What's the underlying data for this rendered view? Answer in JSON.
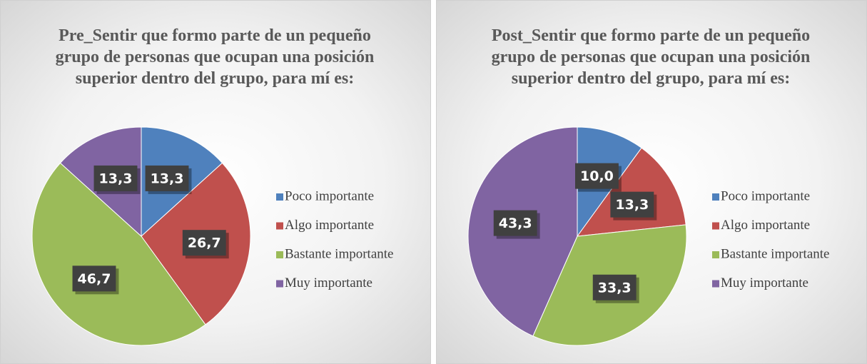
{
  "chart_data": [
    {
      "type": "pie",
      "title": "Pre_Sentir que formo parte de un pequeño grupo de personas que ocupan una posición superior dentro del grupo, para mí es:",
      "categories": [
        "Poco importante",
        "Algo importante",
        "Bastante importante",
        "Muy importante"
      ],
      "values": [
        13.3,
        26.7,
        46.7,
        13.3
      ],
      "value_labels": [
        "13,3",
        "26,7",
        "46,7",
        "13,3"
      ],
      "colors": [
        "#4f81bd",
        "#c0504d",
        "#9bbb59",
        "#8064a2"
      ]
    },
    {
      "type": "pie",
      "title": "Post_Sentir que formo parte de un pequeño grupo de personas que ocupan una posición superior dentro del grupo, para mí es:",
      "categories": [
        "Poco importante",
        "Algo importante",
        "Bastante importante",
        "Muy importante"
      ],
      "values": [
        10.0,
        13.3,
        33.3,
        43.3
      ],
      "value_labels": [
        "10,0",
        "13,3",
        "33,3",
        "43,3"
      ],
      "colors": [
        "#4f81bd",
        "#c0504d",
        "#9bbb59",
        "#8064a2"
      ]
    }
  ]
}
